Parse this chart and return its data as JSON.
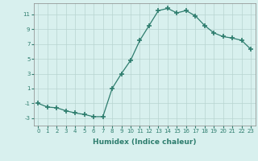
{
  "x": [
    0,
    1,
    2,
    3,
    4,
    5,
    6,
    7,
    8,
    9,
    10,
    11,
    12,
    13,
    14,
    15,
    16,
    17,
    18,
    19,
    20,
    21,
    22,
    23
  ],
  "y": [
    -1,
    -1.5,
    -1.6,
    -2.0,
    -2.3,
    -2.5,
    -2.8,
    -2.8,
    1.0,
    3.0,
    4.8,
    7.5,
    9.5,
    11.5,
    11.8,
    11.2,
    11.5,
    10.8,
    9.5,
    8.5,
    8.0,
    7.8,
    7.5,
    6.3
  ],
  "xlabel": "Humidex (Indice chaleur)",
  "line_color": "#2e7d6e",
  "marker": "+",
  "marker_size": 4,
  "background_color": "#d8f0ee",
  "grid_color": "#b8d4d0",
  "xlim": [
    -0.5,
    23.5
  ],
  "ylim": [
    -4,
    12.5
  ],
  "yticks": [
    -3,
    -1,
    1,
    3,
    5,
    7,
    9,
    11
  ],
  "xticks": [
    0,
    1,
    2,
    3,
    4,
    5,
    6,
    7,
    8,
    9,
    10,
    11,
    12,
    13,
    14,
    15,
    16,
    17,
    18,
    19,
    20,
    21,
    22,
    23
  ],
  "tick_fontsize": 5,
  "xlabel_fontsize": 6.5,
  "xlabel_fontweight": "bold"
}
